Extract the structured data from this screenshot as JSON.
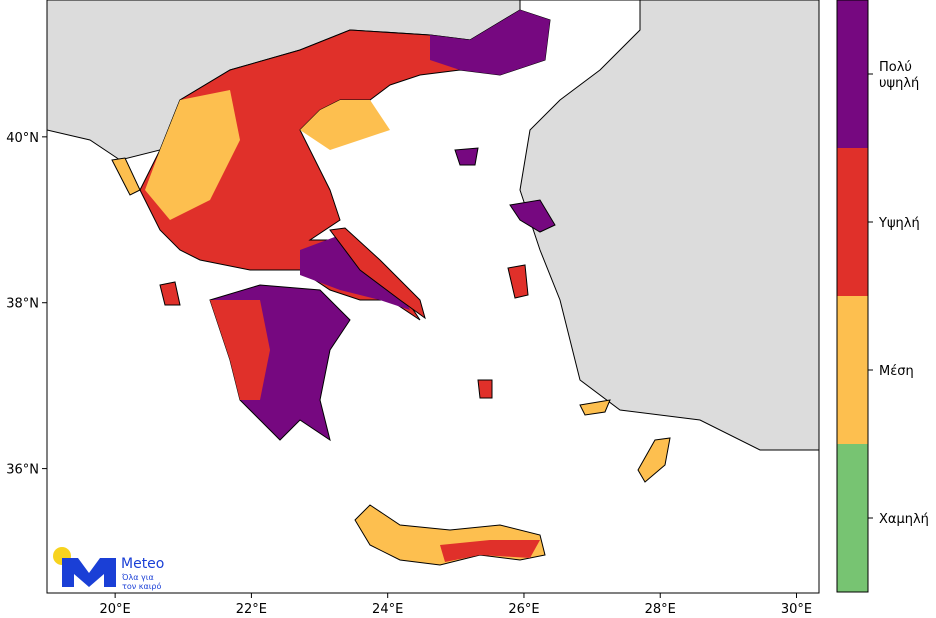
{
  "map": {
    "xlim": [
      19,
      30.33
    ],
    "ylim": [
      34.5,
      41.65
    ],
    "xticks": [
      {
        "value": 20,
        "label": "20°E"
      },
      {
        "value": 22,
        "label": "22°E"
      },
      {
        "value": 24,
        "label": "24°E"
      },
      {
        "value": 26,
        "label": "26°E"
      },
      {
        "value": 28,
        "label": "28°E"
      },
      {
        "value": 30,
        "label": "30°E"
      }
    ],
    "yticks": [
      {
        "value": 36,
        "label": "36°N"
      },
      {
        "value": 38,
        "label": "38°N"
      },
      {
        "value": 40,
        "label": "40°N"
      }
    ],
    "legend": [
      {
        "name": "Χαμηλή",
        "color": "#77c472"
      },
      {
        "name": "Μέση",
        "color": "#fdbf4f"
      },
      {
        "name": "Υψηλή",
        "color": "#e0302a"
      },
      {
        "name": "Πολύ υψηλή",
        "color": "#760880"
      }
    ],
    "logo": {
      "name": "Meteo",
      "tagline": [
        "Όλα για",
        "τον καιρό"
      ]
    }
  }
}
